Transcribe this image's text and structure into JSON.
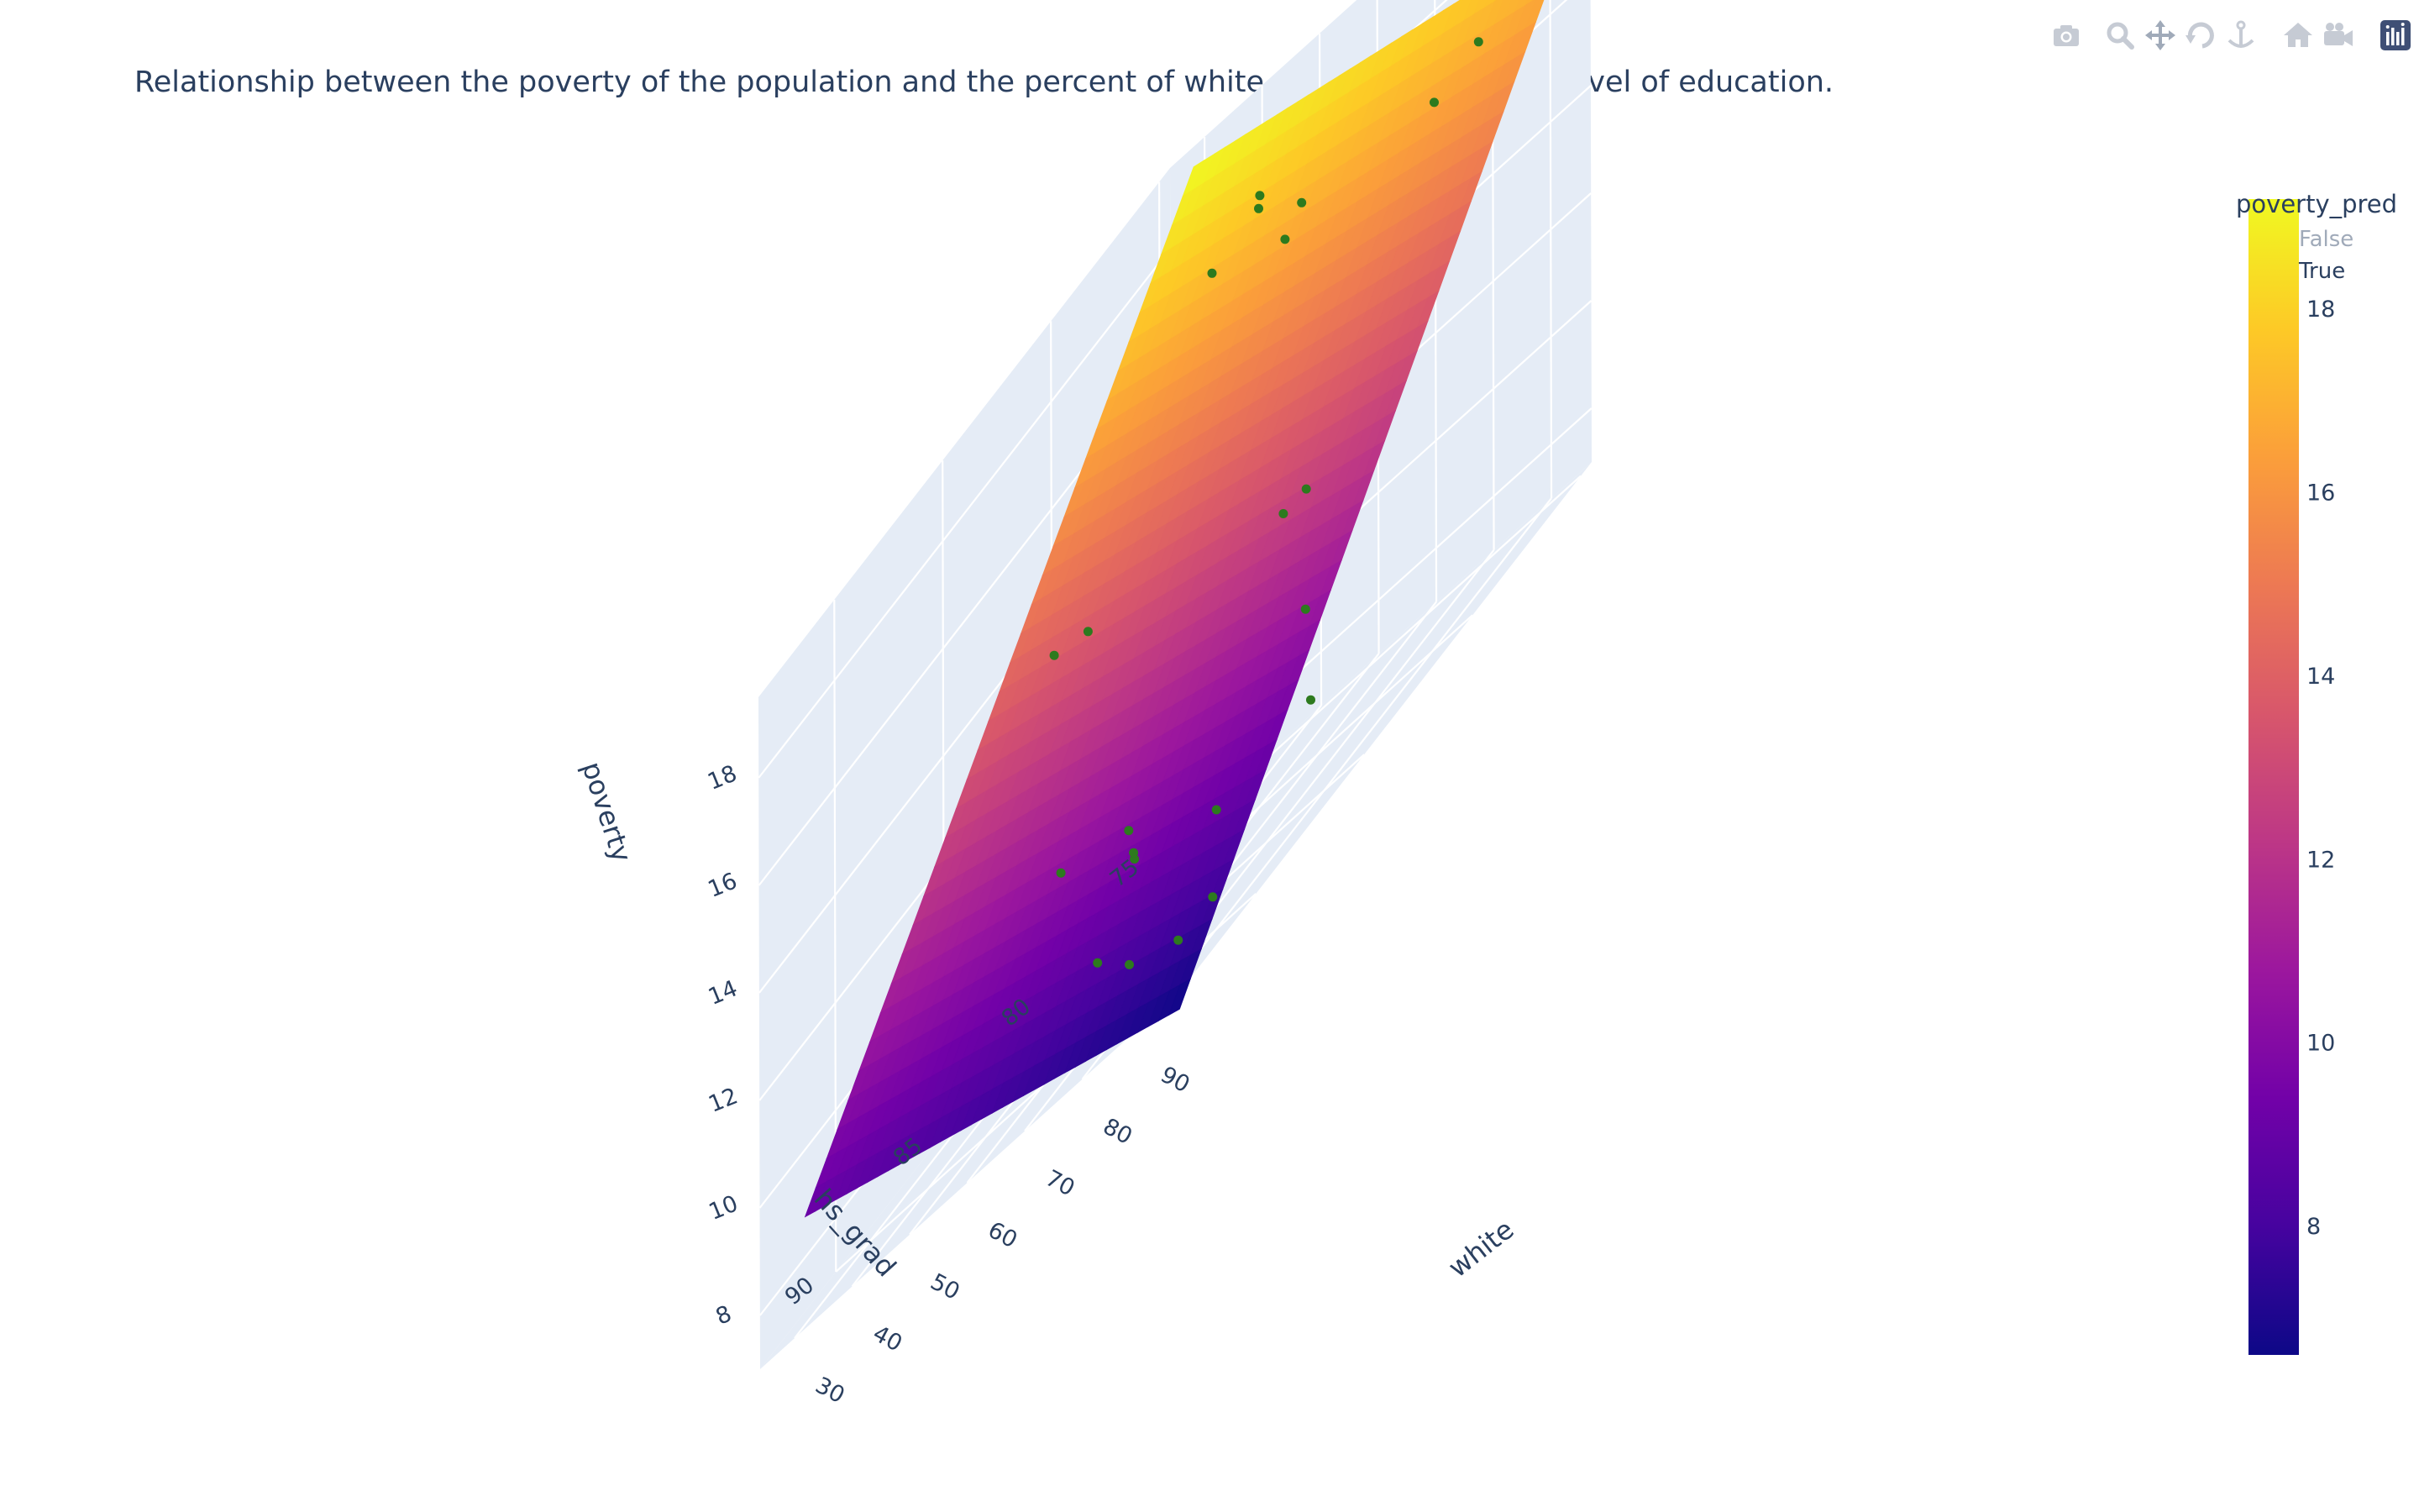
{
  "title": "Relationship between the poverty of the population and the percent of white population and the level of education.",
  "modebar": {
    "buttons": [
      {
        "name": "camera-icon"
      },
      {
        "name": "zoom-icon"
      },
      {
        "name": "pan-icon"
      },
      {
        "name": "orbit-rotate-icon"
      },
      {
        "name": "turntable-rotate-icon"
      },
      {
        "name": "home-icon"
      },
      {
        "name": "camera-view-icon"
      },
      {
        "name": "plotly-logo-icon"
      }
    ]
  },
  "colors": {
    "scatter_marker": "#2d7a1e",
    "scene_bg": "#e5ecf6",
    "grid": "#ffffff",
    "text": "#2a3f5f",
    "legend_false_text": "#a0aab9",
    "colorscale": [
      "#0d0887",
      "#46039f",
      "#7201a8",
      "#9c179e",
      "#bd3786",
      "#d8576b",
      "#ed7953",
      "#fb9f3a",
      "#fdca26",
      "#f0f921"
    ]
  },
  "chart_data": {
    "type": "scatter3d+surface",
    "axes": {
      "x": {
        "label": "white",
        "ticks": [
          30,
          40,
          50,
          60,
          70,
          80,
          90
        ],
        "range": [
          24,
          97
        ]
      },
      "y": {
        "label": "hs_grad",
        "ticks": [
          75,
          80,
          85,
          90
        ],
        "range": [
          74.5,
          93.5
        ]
      },
      "z": {
        "label": "poverty",
        "ticks": [
          8,
          10,
          12,
          14,
          16,
          18
        ],
        "range": [
          7,
          19.5
        ]
      }
    },
    "surface": {
      "name": "poverty_pred",
      "corner_values": {
        "white_low_hs_low": 19.2,
        "white_high_hs_low": 17.3,
        "white_low_hs_high": 9.0,
        "white_high_hs_high": 6.6
      }
    },
    "colorbar": {
      "title": "poverty_pred",
      "ticks": [
        8,
        10,
        12,
        14,
        16,
        18
      ],
      "range": [
        6.6,
        19.2
      ]
    },
    "legend": {
      "title": "poverty_pred",
      "entries": [
        {
          "label": "False",
          "active": false
        },
        {
          "label": "True",
          "active": true
        }
      ]
    },
    "points": [
      {
        "white": 35,
        "hs_grad": 75.5,
        "poverty": 17.0
      },
      {
        "white": 45,
        "hs_grad": 76.0,
        "poverty": 17.5
      },
      {
        "white": 52,
        "hs_grad": 77.8,
        "poverty": 18.0
      },
      {
        "white": 60,
        "hs_grad": 78.0,
        "poverty": 17.2
      },
      {
        "white": 62,
        "hs_grad": 79.3,
        "poverty": 17.0
      },
      {
        "white": 77,
        "hs_grad": 76.4,
        "poverty": 16.6
      },
      {
        "white": 90,
        "hs_grad": 77.8,
        "poverty": 17.2
      },
      {
        "white": 38,
        "hs_grad": 83.6,
        "poverty": 13.8
      },
      {
        "white": 42,
        "hs_grad": 83.1,
        "poverty": 13.6
      },
      {
        "white": 68,
        "hs_grad": 81.0,
        "poverty": 12.2
      },
      {
        "white": 75,
        "hs_grad": 81.8,
        "poverty": 12.4
      },
      {
        "white": 50,
        "hs_grad": 86.5,
        "poverty": 10.1
      },
      {
        "white": 58,
        "hs_grad": 85.5,
        "poverty": 9.6
      },
      {
        "white": 62,
        "hs_grad": 86.3,
        "poverty": 9.1
      },
      {
        "white": 66,
        "hs_grad": 87.4,
        "poverty": 9.4
      },
      {
        "white": 85,
        "hs_grad": 84.5,
        "poverty": 10.6
      },
      {
        "white": 90,
        "hs_grad": 85.6,
        "poverty": 9.0
      },
      {
        "white": 80,
        "hs_grad": 87.3,
        "poverty": 8.8
      },
      {
        "white": 68,
        "hs_grad": 89.6,
        "poverty": 8.3
      },
      {
        "white": 75,
        "hs_grad": 90.0,
        "poverty": 7.8
      },
      {
        "white": 85,
        "hs_grad": 90.4,
        "poverty": 7.5
      },
      {
        "white": 88,
        "hs_grad": 89.6,
        "poverty": 7.6
      }
    ]
  }
}
